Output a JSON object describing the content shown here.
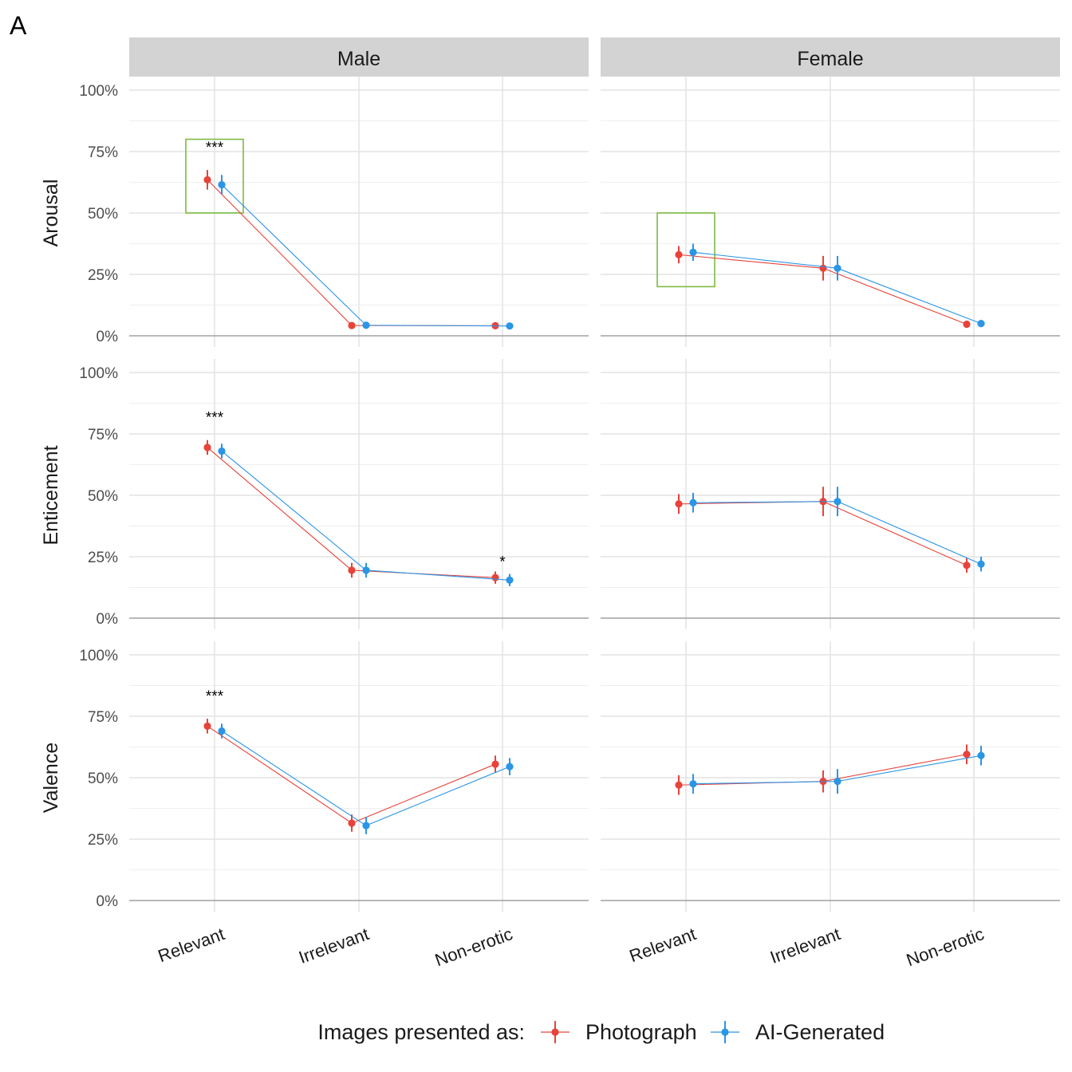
{
  "panel_label": "A",
  "legend": {
    "title": "Images presented as:",
    "items": [
      {
        "label": "Photograph",
        "color": "#E8433A"
      },
      {
        "label": "AI-Generated",
        "color": "#2B95E6"
      }
    ]
  },
  "chart_data": {
    "type": "line",
    "facet_columns": [
      "Male",
      "Female"
    ],
    "facet_rows": [
      "Arousal",
      "Enticement",
      "Valence"
    ],
    "categories": [
      "Relevant",
      "Irrelevant",
      "Non-erotic"
    ],
    "y_ticks": [
      "0%",
      "25%",
      "50%",
      "75%",
      "100%"
    ],
    "ylim": [
      0,
      100
    ],
    "grid": true,
    "legend_position": "bottom",
    "series_colors": {
      "Photograph": "#E8433A",
      "AI-Generated": "#2B95E6"
    },
    "highlight_color": "#7DBB42",
    "panels": [
      {
        "row": "Arousal",
        "column": "Male",
        "series": [
          {
            "name": "Photograph",
            "values": [
              63.5,
              4.2,
              4.1
            ],
            "error": [
              4,
              1,
              1
            ]
          },
          {
            "name": "AI-Generated",
            "values": [
              61.5,
              4.3,
              4.0
            ],
            "error": [
              4,
              1,
              1
            ]
          }
        ],
        "annotations": [
          {
            "category": "Relevant",
            "text": "***"
          }
        ],
        "highlight": {
          "category": "Relevant",
          "ymin": 50,
          "ymax": 80
        }
      },
      {
        "row": "Arousal",
        "column": "Female",
        "series": [
          {
            "name": "Photograph",
            "values": [
              33,
              27.5,
              4.7
            ],
            "error": [
              3.5,
              5,
              1
            ]
          },
          {
            "name": "AI-Generated",
            "values": [
              34,
              27.5,
              5.0
            ],
            "error": [
              3.5,
              5,
              1
            ]
          }
        ],
        "annotations": [],
        "highlight": {
          "category": "Relevant",
          "ymin": 20,
          "ymax": 50
        }
      },
      {
        "row": "Enticement",
        "column": "Male",
        "series": [
          {
            "name": "Photograph",
            "values": [
              69.5,
              19.5,
              16.5
            ],
            "error": [
              3,
              3,
              2.5
            ]
          },
          {
            "name": "AI-Generated",
            "values": [
              68,
              19.5,
              15.5
            ],
            "error": [
              3,
              3,
              2.5
            ]
          }
        ],
        "annotations": [
          {
            "category": "Relevant",
            "text": "***"
          },
          {
            "category": "Non-erotic",
            "text": "*"
          }
        ],
        "highlight": null
      },
      {
        "row": "Enticement",
        "column": "Female",
        "series": [
          {
            "name": "Photograph",
            "values": [
              46.5,
              47.5,
              21.5
            ],
            "error": [
              4,
              6,
              3
            ]
          },
          {
            "name": "AI-Generated",
            "values": [
              47,
              47.5,
              22
            ],
            "error": [
              4,
              6,
              3
            ]
          }
        ],
        "annotations": [],
        "highlight": null
      },
      {
        "row": "Valence",
        "column": "Male",
        "series": [
          {
            "name": "Photograph",
            "values": [
              71,
              31.5,
              55.5
            ],
            "error": [
              3,
              3.5,
              3.5
            ]
          },
          {
            "name": "AI-Generated",
            "values": [
              69,
              30.5,
              54.5
            ],
            "error": [
              3,
              3.5,
              3.5
            ]
          }
        ],
        "annotations": [
          {
            "category": "Relevant",
            "text": "***"
          }
        ],
        "highlight": null
      },
      {
        "row": "Valence",
        "column": "Female",
        "series": [
          {
            "name": "Photograph",
            "values": [
              47,
              48.5,
              59.5
            ],
            "error": [
              4,
              4.5,
              4
            ]
          },
          {
            "name": "AI-Generated",
            "values": [
              47.5,
              48.5,
              59
            ],
            "error": [
              4,
              5,
              4
            ]
          }
        ],
        "annotations": [],
        "highlight": null
      }
    ]
  }
}
